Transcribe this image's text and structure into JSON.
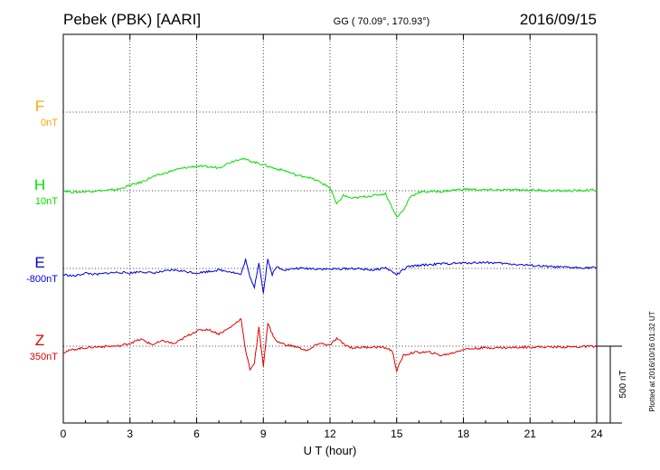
{
  "header": {
    "station": "Pebek (PBK)  [AARI]",
    "coords": "GG ( 70.09°, 170.93°)",
    "date": "2016/09/15"
  },
  "footer": {
    "xlabel": "U T (hour)",
    "plotted": "Plotted at 2016/10/16 01:32 UT"
  },
  "chart_data": {
    "type": "line",
    "xlabel": "U T (hour)",
    "xlim": [
      0,
      24
    ],
    "xticks": [
      0,
      3,
      6,
      9,
      12,
      15,
      18,
      21,
      24
    ],
    "grid": true,
    "scale_bar": "500 nT",
    "series": [
      {
        "name": "F",
        "offset": "0nT",
        "color": "#ffa500",
        "values": []
      },
      {
        "name": "H",
        "offset": "10nT",
        "color": "#00e000",
        "x": [
          0,
          0.5,
          1,
          1.5,
          2,
          2.5,
          3,
          3.5,
          4,
          4.5,
          5,
          5.5,
          6,
          6.5,
          7,
          7.5,
          8,
          8.5,
          9,
          9.5,
          10,
          10.5,
          11,
          11.5,
          12,
          12.3,
          12.6,
          13,
          13.5,
          14,
          14.5,
          14.8,
          15,
          15.3,
          15.6,
          16,
          16.5,
          17,
          18,
          19,
          20,
          21,
          22,
          23,
          24
        ],
        "values": [
          0,
          -10,
          -5,
          0,
          2,
          10,
          35,
          55,
          90,
          110,
          135,
          150,
          160,
          155,
          150,
          185,
          210,
          190,
          170,
          145,
          130,
          100,
          90,
          60,
          20,
          -90,
          -30,
          -50,
          -40,
          -30,
          -20,
          -110,
          -170,
          -130,
          -40,
          -10,
          -5,
          -5,
          10,
          5,
          5,
          5,
          0,
          0,
          5
        ]
      },
      {
        "name": "E",
        "offset": "-800nT",
        "color": "#0000e0",
        "x": [
          0,
          0.5,
          1,
          1.5,
          2,
          2.5,
          3,
          3.5,
          4,
          4.5,
          5,
          5.5,
          6,
          6.5,
          7,
          7.5,
          8,
          8.2,
          8.4,
          8.6,
          8.8,
          9,
          9.2,
          9.4,
          9.6,
          10,
          10.5,
          11,
          12,
          13,
          14,
          14.5,
          15,
          15.5,
          16,
          17,
          18,
          19,
          20,
          21,
          22,
          23,
          24
        ],
        "values": [
          -40,
          -50,
          -30,
          -40,
          -30,
          -25,
          -30,
          -20,
          -30,
          -20,
          -10,
          -20,
          -30,
          -20,
          -10,
          -20,
          -40,
          60,
          -60,
          -120,
          40,
          -160,
          60,
          -40,
          10,
          -10,
          0,
          0,
          -5,
          0,
          -10,
          5,
          -40,
          10,
          20,
          30,
          35,
          40,
          30,
          20,
          10,
          5,
          5
        ]
      },
      {
        "name": "Z",
        "offset": "350nT",
        "color": "#e00000",
        "x": [
          0,
          0.5,
          1,
          1.5,
          2,
          2.5,
          3,
          3.5,
          4,
          4.5,
          5,
          5.5,
          6,
          6.5,
          7,
          7.5,
          8,
          8.2,
          8.4,
          8.6,
          8.8,
          9,
          9.2,
          9.4,
          9.6,
          10,
          10.5,
          11,
          11.5,
          12,
          12.3,
          12.7,
          13,
          14,
          14.5,
          14.8,
          15,
          15.3,
          15.8,
          16.5,
          17,
          17.5,
          18,
          19,
          20,
          21,
          22,
          23,
          24
        ],
        "values": [
          -40,
          -20,
          -10,
          -5,
          0,
          0,
          20,
          45,
          10,
          35,
          15,
          60,
          100,
          110,
          80,
          120,
          180,
          -30,
          -150,
          -110,
          120,
          -130,
          150,
          80,
          30,
          10,
          -5,
          -30,
          20,
          5,
          50,
          5,
          -10,
          -5,
          -10,
          -30,
          -160,
          -60,
          -40,
          -40,
          -60,
          -45,
          -20,
          -10,
          -10,
          -5,
          -5,
          -5,
          0
        ]
      }
    ]
  }
}
